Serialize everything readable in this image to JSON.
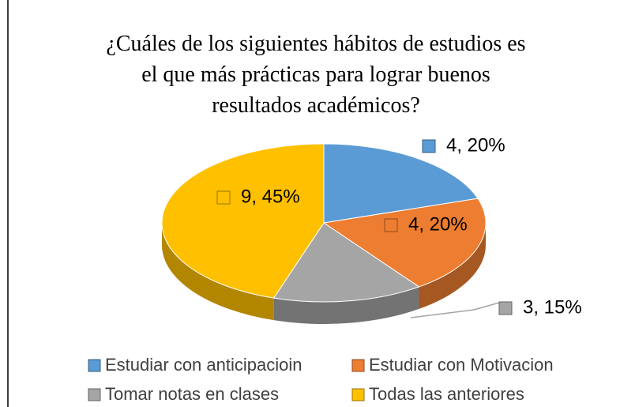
{
  "chart_data": {
    "type": "pie",
    "title": [
      "¿Cuáles de los siguientes hábitos de estudios es",
      "el que más prácticas para lograr buenos",
      "resultados académicos?"
    ],
    "categories": [
      "Estudiar con anticipacioin",
      "Estudiar con Motivacion",
      "Tomar notas en clases",
      "Todas las anteriores"
    ],
    "values": [
      4,
      4,
      3,
      9
    ],
    "value_labels": [
      "4, 20%",
      "4, 20%",
      "3, 15%",
      "9, 45%"
    ],
    "colors": [
      "#5b9bd5",
      "#ed7d31",
      "#a5a5a5",
      "#ffc000"
    ],
    "legend": "bottom"
  }
}
